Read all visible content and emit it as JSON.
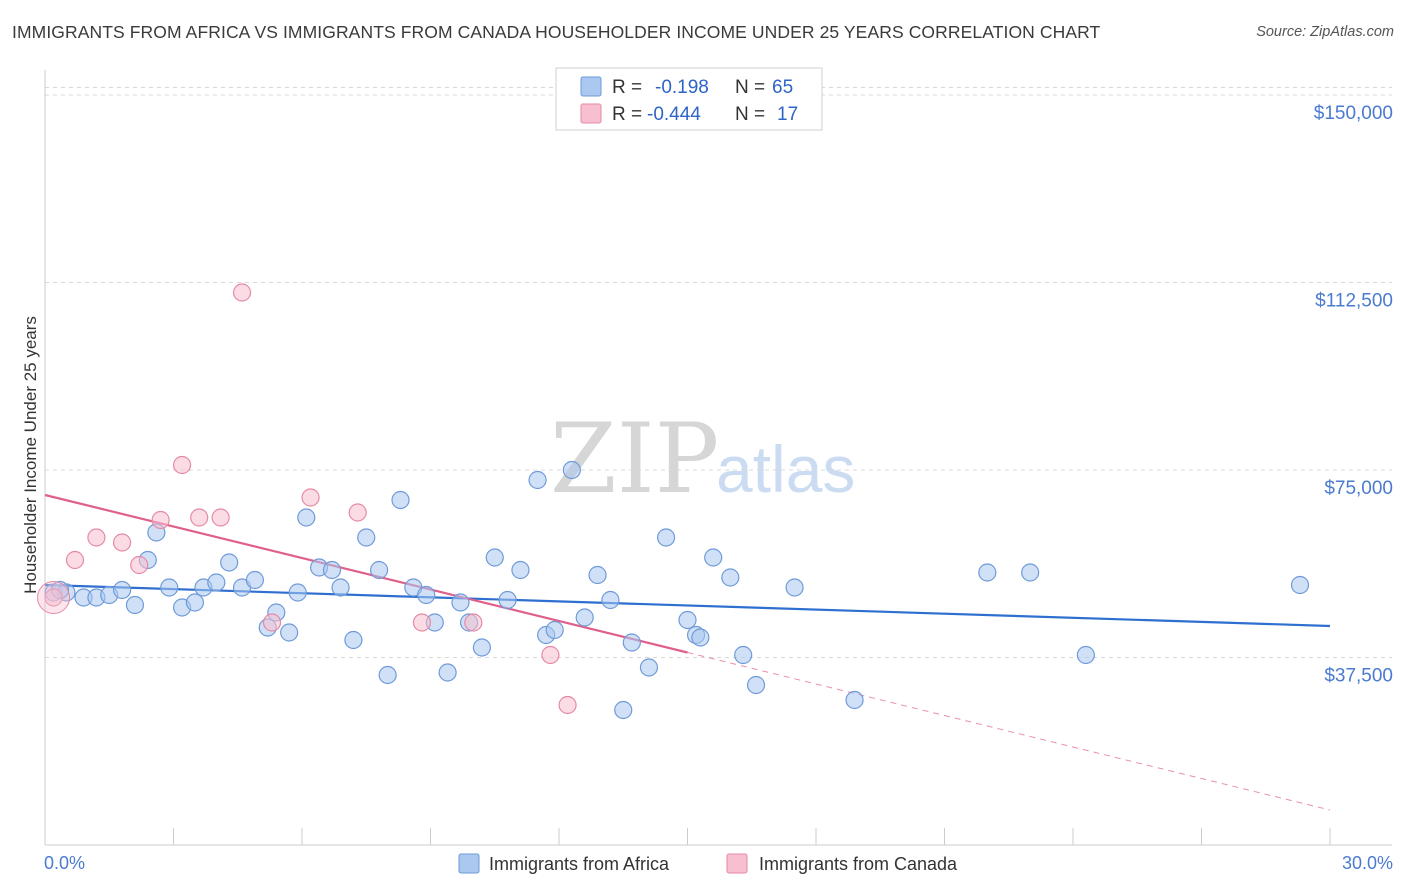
{
  "title": "IMMIGRANTS FROM AFRICA VS IMMIGRANTS FROM CANADA HOUSEHOLDER INCOME UNDER 25 YEARS CORRELATION CHART",
  "source": "Source: ZipAtlas.com",
  "watermark": {
    "zip": "ZIP",
    "atlas": "atlas"
  },
  "colors": {
    "africa_fill": "#aac8f0",
    "africa_stroke": "#6f9ad8",
    "africa_line": "#2e6fd0",
    "canada_fill": "#f7bfd0",
    "canada_stroke": "#e58aa6",
    "canada_line": "#e0608c",
    "tick_label": "#4a7bd0",
    "grid": "#d8d8d8"
  },
  "legend": {
    "rows": [
      {
        "series": "africa",
        "r_label": "R =",
        "r_value": "-0.198",
        "n_label": "N =",
        "n_value": "65"
      },
      {
        "series": "canada",
        "r_label": "R =",
        "r_value": "-0.444",
        "n_label": "N =",
        "n_value": "17"
      }
    ]
  },
  "chart_data": {
    "type": "scatter",
    "title": "IMMIGRANTS FROM AFRICA VS IMMIGRANTS FROM CANADA HOUSEHOLDER INCOME UNDER 25 YEARS CORRELATION CHART",
    "xlabel": "",
    "ylabel": "Householder Income Under 25 years",
    "xlim": [
      0,
      30
    ],
    "ylim": [
      0,
      155000
    ],
    "x_tick_labels": [
      "0.0%",
      "30.0%"
    ],
    "y_ticks": [
      {
        "value": 37500,
        "label": "$37,500"
      },
      {
        "value": 75000,
        "label": "$75,000"
      },
      {
        "value": 112500,
        "label": "$112,500"
      },
      {
        "value": 150000,
        "label": "$150,000"
      }
    ],
    "grid": true,
    "legend_position": "top-center",
    "series": [
      {
        "name": "Immigrants from Africa",
        "key": "africa",
        "r": -0.198,
        "n": 65,
        "trend": {
          "x0": 0,
          "y0": 52000,
          "x1": 30,
          "y1": 43800,
          "solid_until": 30
        },
        "points": [
          [
            0.2,
            50500
          ],
          [
            0.5,
            50500
          ],
          [
            0.9,
            49500
          ],
          [
            1.2,
            49500
          ],
          [
            1.5,
            50000
          ],
          [
            1.8,
            51000
          ],
          [
            2.1,
            48000
          ],
          [
            2.4,
            57000
          ],
          [
            2.6,
            62500
          ],
          [
            2.9,
            51500
          ],
          [
            3.2,
            47500
          ],
          [
            3.5,
            48500
          ],
          [
            3.7,
            51500
          ],
          [
            4.0,
            52500
          ],
          [
            4.3,
            56500
          ],
          [
            4.6,
            51500
          ],
          [
            4.9,
            53000
          ],
          [
            5.2,
            43500
          ],
          [
            5.4,
            46500
          ],
          [
            5.7,
            42500
          ],
          [
            5.9,
            50500
          ],
          [
            6.1,
            65500
          ],
          [
            6.4,
            55500
          ],
          [
            6.7,
            55000
          ],
          [
            6.9,
            51500
          ],
          [
            7.2,
            41000
          ],
          [
            7.5,
            61500
          ],
          [
            7.8,
            55000
          ],
          [
            8.0,
            34000
          ],
          [
            8.3,
            69000
          ],
          [
            8.6,
            51500
          ],
          [
            8.9,
            50000
          ],
          [
            9.1,
            44500
          ],
          [
            9.4,
            34500
          ],
          [
            9.7,
            48500
          ],
          [
            9.9,
            44500
          ],
          [
            10.2,
            39500
          ],
          [
            10.5,
            57500
          ],
          [
            10.8,
            49000
          ],
          [
            11.1,
            55000
          ],
          [
            11.5,
            73000
          ],
          [
            11.7,
            42000
          ],
          [
            11.9,
            43000
          ],
          [
            12.3,
            75000
          ],
          [
            12.6,
            45500
          ],
          [
            12.9,
            54000
          ],
          [
            13.2,
            49000
          ],
          [
            13.5,
            27000
          ],
          [
            13.7,
            40500
          ],
          [
            14.1,
            35500
          ],
          [
            14.5,
            61500
          ],
          [
            15.0,
            45000
          ],
          [
            15.2,
            42000
          ],
          [
            15.3,
            41500
          ],
          [
            15.6,
            57500
          ],
          [
            16.0,
            53500
          ],
          [
            16.3,
            38000
          ],
          [
            16.6,
            32000
          ],
          [
            17.5,
            51500
          ],
          [
            18.9,
            29000
          ],
          [
            22.0,
            54500
          ],
          [
            23.0,
            54500
          ],
          [
            24.3,
            38000
          ],
          [
            29.3,
            52000
          ],
          [
            0.35,
            51000
          ]
        ]
      },
      {
        "name": "Immigrants from Canada",
        "key": "canada",
        "r": -0.444,
        "n": 17,
        "trend": {
          "x0": 0,
          "y0": 70000,
          "x1": 30,
          "y1": 7000,
          "solid_until": 15.0
        },
        "points": [
          [
            0.2,
            49500
          ],
          [
            0.7,
            57000
          ],
          [
            1.2,
            61500
          ],
          [
            1.8,
            60500
          ],
          [
            2.2,
            56000
          ],
          [
            2.7,
            65000
          ],
          [
            3.2,
            76000
          ],
          [
            3.6,
            65500
          ],
          [
            4.1,
            65500
          ],
          [
            4.6,
            110500
          ],
          [
            5.3,
            44500
          ],
          [
            6.2,
            69500
          ],
          [
            7.3,
            66500
          ],
          [
            8.8,
            44500
          ],
          [
            10.0,
            44500
          ],
          [
            11.8,
            38000
          ],
          [
            12.2,
            28000
          ]
        ]
      }
    ]
  },
  "bottom_legend": [
    {
      "series": "africa",
      "label": "Immigrants from Africa"
    },
    {
      "series": "canada",
      "label": "Immigrants from Canada"
    }
  ]
}
